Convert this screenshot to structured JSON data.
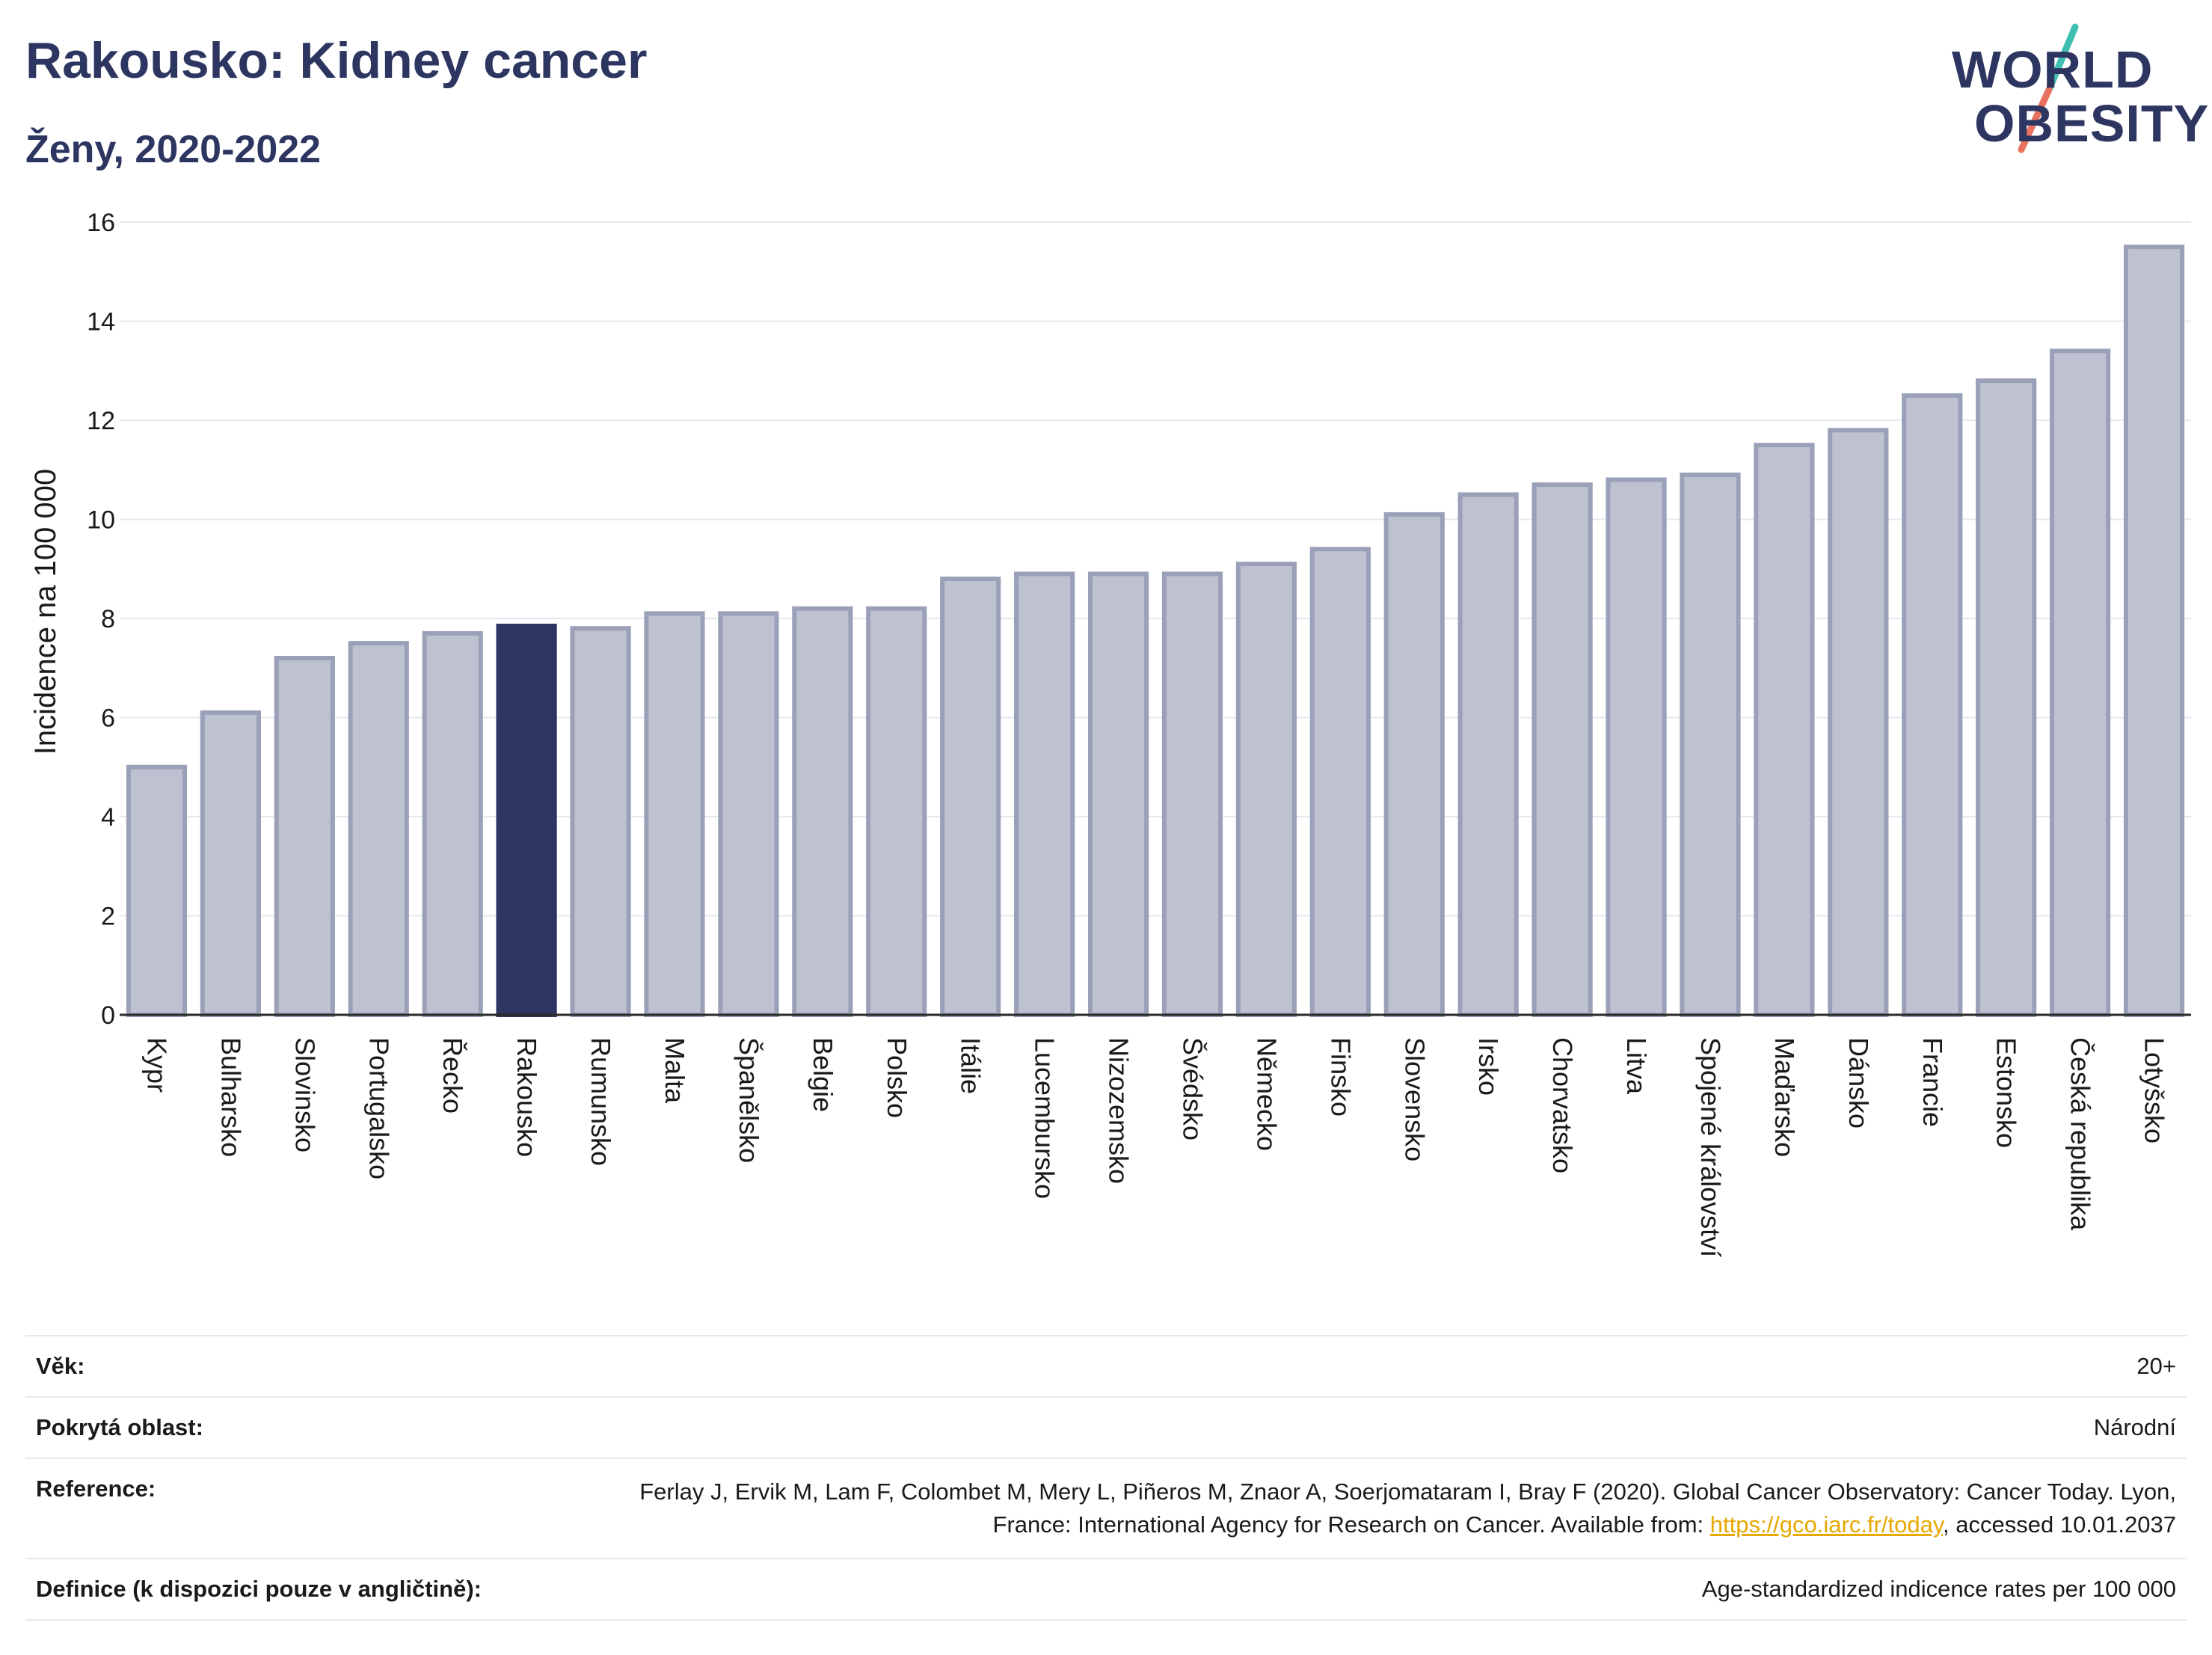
{
  "header": {
    "title": "Rakousko: Kidney cancer",
    "subtitle": "Ženy, 2020-2022",
    "logo_line1": "WORLD",
    "logo_line2": "OBESITY"
  },
  "colors": {
    "bar": "#bec2d0",
    "bar_stroke": "#9aa0b8",
    "highlight": "#2c3660",
    "title": "#2d3561",
    "logo_slash_teal": "#3fbfb1",
    "logo_slash_coral": "#e8725f",
    "link": "#e7a800"
  },
  "chart_data": {
    "type": "bar",
    "ylabel": "Incidence na 100 000",
    "ylim": [
      0,
      16
    ],
    "yticks": [
      0,
      2,
      4,
      6,
      8,
      10,
      12,
      14,
      16
    ],
    "grid": true,
    "highlight": "Rakousko",
    "categories": [
      "Kypr",
      "Bulharsko",
      "Slovinsko",
      "Portugalsko",
      "Řecko",
      "Rakousko",
      "Rumunsko",
      "Malta",
      "Španělsko",
      "Belgie",
      "Polsko",
      "Itálie",
      "Lucembursko",
      "Nizozemsko",
      "Švédsko",
      "Německo",
      "Finsko",
      "Slovensko",
      "Irsko",
      "Chorvatsko",
      "Litva",
      "Spojené království",
      "Maďarsko",
      "Dánsko",
      "Francie",
      "Estonsko",
      "Česká republika",
      "Lotyšsko"
    ],
    "values": [
      5.0,
      6.1,
      7.2,
      7.5,
      7.7,
      7.85,
      7.8,
      8.1,
      8.1,
      8.2,
      8.2,
      8.8,
      8.9,
      8.9,
      8.9,
      9.1,
      9.4,
      10.1,
      10.5,
      10.7,
      10.8,
      10.9,
      11.5,
      11.8,
      12.5,
      12.8,
      13.4,
      15.5
    ]
  },
  "info": {
    "age_label": "Věk:",
    "age_value": "20+",
    "coverage_label": "Pokrytá oblast:",
    "coverage_value": "Národní",
    "reference_label": "Reference:",
    "reference_text_1": "Ferlay J, Ervik M, Lam F, Colombet M, Mery L, Piñeros M, Znaor A, Soerjomataram I, Bray F (2020). Global Cancer Observatory: Cancer Today. Lyon, France: International Agency for Research on Cancer. Available from: ",
    "reference_link": "https://gco.iarc.fr/today",
    "reference_text_2": ", accessed 10.01.2037",
    "definition_label": "Definice (k dispozici pouze v angličtině):",
    "definition_value": "Age-standardized indicence rates per 100 000"
  }
}
